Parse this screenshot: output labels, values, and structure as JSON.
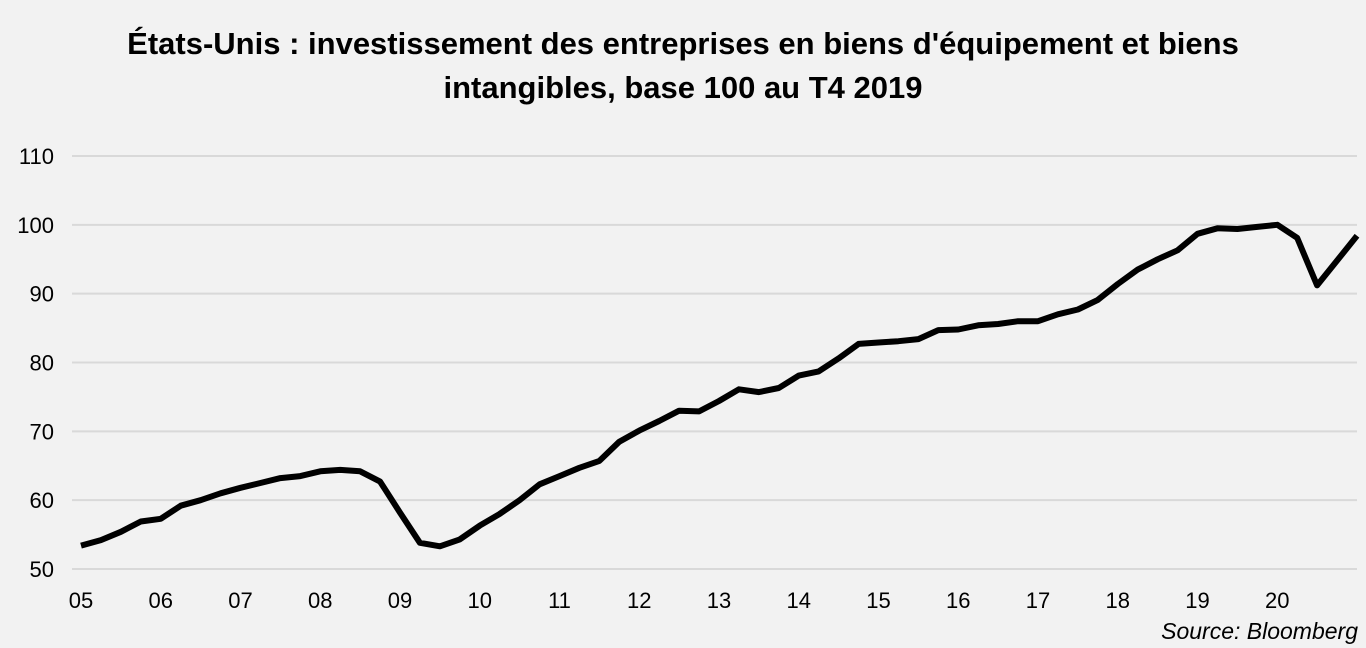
{
  "chart_data": {
    "type": "line",
    "title": "États-Unis : investissement des entreprises en biens d'équipement et biens intangibles, base 100 au T4 2019",
    "source": "Source: Bloomberg",
    "ylim": [
      50,
      110
    ],
    "yticks": [
      50,
      60,
      70,
      80,
      90,
      100,
      110
    ],
    "grid": true,
    "legend": "none",
    "color": "#000000",
    "grid_color": "#d9d9d9",
    "x_start": 2005.0,
    "x_end": 2021.0,
    "xtick_labels": [
      "05",
      "06",
      "07",
      "08",
      "09",
      "10",
      "11",
      "12",
      "13",
      "14",
      "15",
      "16",
      "17",
      "18",
      "19",
      "20"
    ],
    "series": [
      {
        "x": [
          "2005Q1",
          "2005Q2",
          "2005Q3",
          "2005Q4",
          "2006Q1",
          "2006Q2",
          "2006Q3",
          "2006Q4",
          "2007Q1",
          "2007Q2",
          "2007Q3",
          "2007Q4",
          "2008Q1",
          "2008Q2",
          "2008Q3",
          "2008Q4",
          "2009Q1",
          "2009Q2",
          "2009Q3",
          "2009Q4",
          "2010Q1",
          "2010Q2",
          "2010Q3",
          "2010Q4",
          "2011Q1",
          "2011Q2",
          "2011Q3",
          "2011Q4",
          "2012Q1",
          "2012Q2",
          "2012Q3",
          "2012Q4",
          "2013Q1",
          "2013Q2",
          "2013Q3",
          "2013Q4",
          "2014Q1",
          "2014Q2",
          "2014Q3",
          "2014Q4",
          "2015Q1",
          "2015Q2",
          "2015Q3",
          "2015Q4",
          "2016Q1",
          "2016Q2",
          "2016Q3",
          "2016Q4",
          "2017Q1",
          "2017Q2",
          "2017Q3",
          "2017Q4",
          "2018Q1",
          "2018Q2",
          "2018Q3",
          "2018Q4",
          "2019Q1",
          "2019Q2",
          "2019Q3",
          "2019Q4",
          "2020Q1",
          "2020Q2",
          "2020Q3",
          "2020Q4"
        ],
        "values": [
          53.4,
          54.2,
          55.4,
          56.9,
          57.3,
          59.2,
          60.0,
          61.0,
          61.8,
          62.5,
          63.2,
          63.5,
          64.2,
          64.4,
          64.2,
          62.7,
          58.2,
          53.8,
          53.3,
          54.3,
          56.3,
          58.0,
          60.0,
          62.3,
          63.5,
          64.7,
          65.7,
          68.5,
          70.1,
          71.5,
          73.0,
          72.9,
          74.4,
          76.1,
          75.7,
          76.3,
          78.1,
          78.7,
          80.6,
          82.7,
          82.9,
          83.1,
          83.4,
          84.7,
          84.8,
          85.4,
          85.6,
          86.0,
          86.0,
          87.0,
          87.7,
          89.1,
          91.4,
          93.5,
          95.0,
          96.3,
          98.7,
          99.5,
          99.4,
          99.7,
          100.0,
          98.1,
          91.2,
          98.4
        ]
      }
    ]
  }
}
